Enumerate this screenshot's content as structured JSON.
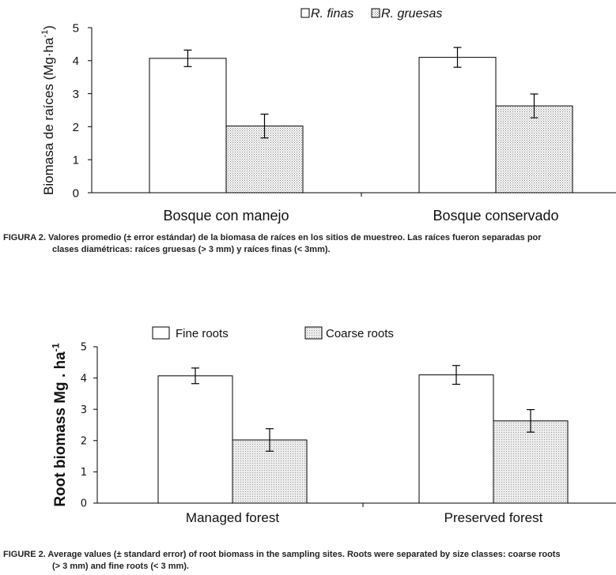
{
  "chart_data": [
    {
      "type": "bar",
      "language": "es",
      "categories": [
        "Bosque con manejo",
        "Bosque conservado"
      ],
      "series": [
        {
          "name": "R. finas",
          "values": [
            4.07,
            4.1
          ],
          "errors": [
            0.25,
            0.3
          ],
          "pattern": "none"
        },
        {
          "name": "R. gruesas",
          "values": [
            2.02,
            2.63
          ],
          "errors": [
            0.36,
            0.36
          ],
          "pattern": "dots"
        }
      ],
      "ylabel_text": "Biomasa de raíces (Mg·ha",
      "ylabel_sup": "-1",
      "ylabel_close": ")",
      "xlabel": "",
      "ylim": [
        0,
        5
      ],
      "yticks": [
        "0",
        "1",
        "2",
        "3",
        "4",
        "5"
      ],
      "legend": "top-right"
    },
    {
      "type": "bar",
      "language": "en",
      "categories": [
        "Managed forest",
        "Preserved forest"
      ],
      "series": [
        {
          "name": "Fine roots",
          "values": [
            4.07,
            4.1
          ],
          "errors": [
            0.25,
            0.3
          ],
          "pattern": "none"
        },
        {
          "name": "Coarse roots",
          "values": [
            2.02,
            2.63
          ],
          "errors": [
            0.36,
            0.36
          ],
          "pattern": "dots"
        }
      ],
      "ylabel_text": "Root biomass Mg . ha",
      "ylabel_sup": "-1",
      "ylabel_close": "",
      "xlabel": "",
      "ylim": [
        0,
        5
      ],
      "yticks": [
        "0",
        "1",
        "2",
        "3",
        "4",
        "5"
      ],
      "legend": "top-center"
    }
  ],
  "captions": {
    "es": {
      "line1": "FIGURA 2. Valores promedio (± error estándar) de la biomasa de raíces en los sitios de muestreo. Las raíces fueron separadas por",
      "line2": "clases diamétricas: raíces gruesas (> 3 mm) y raíces finas (< 3mm)."
    },
    "en": {
      "line1": "FIGURE 2. Average values (± standard error) of root biomass in the sampling sites. Roots were separated by size classes: coarse roots",
      "line2": "(> 3 mm) and fine roots (< 3 mm)."
    }
  },
  "colors": {
    "bar_fill_fine": "#ffffff",
    "bar_fill_coarse": "#e4e4e4",
    "dot_color": "#777777",
    "axis": "#000000",
    "text": "#111111"
  }
}
